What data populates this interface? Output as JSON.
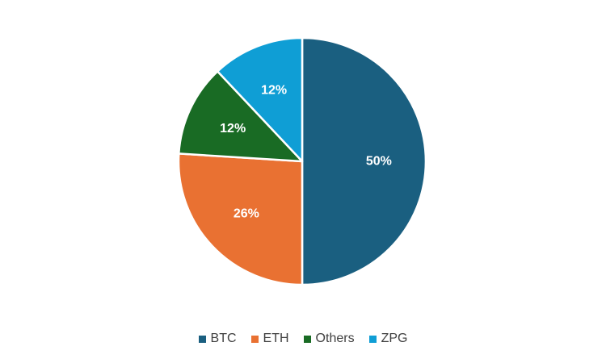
{
  "chart_data": {
    "type": "pie",
    "categories": [
      "BTC",
      "ETH",
      "Others",
      "ZPG"
    ],
    "values": [
      50,
      26,
      12,
      12
    ],
    "value_labels": [
      "50%",
      "26%",
      "12%",
      "12%"
    ],
    "colors": [
      "#1a5f80",
      "#e97132",
      "#196b24",
      "#0f9ed5"
    ],
    "start_angle_deg": 0,
    "direction": "clockwise",
    "legend_position": "bottom",
    "slice_border_color": "#ffffff"
  },
  "legend": {
    "items": [
      {
        "label": "BTC",
        "color": "#1a5f80"
      },
      {
        "label": "ETH",
        "color": "#e97132"
      },
      {
        "label": "Others",
        "color": "#196b24"
      },
      {
        "label": "ZPG",
        "color": "#0f9ed5"
      }
    ]
  }
}
